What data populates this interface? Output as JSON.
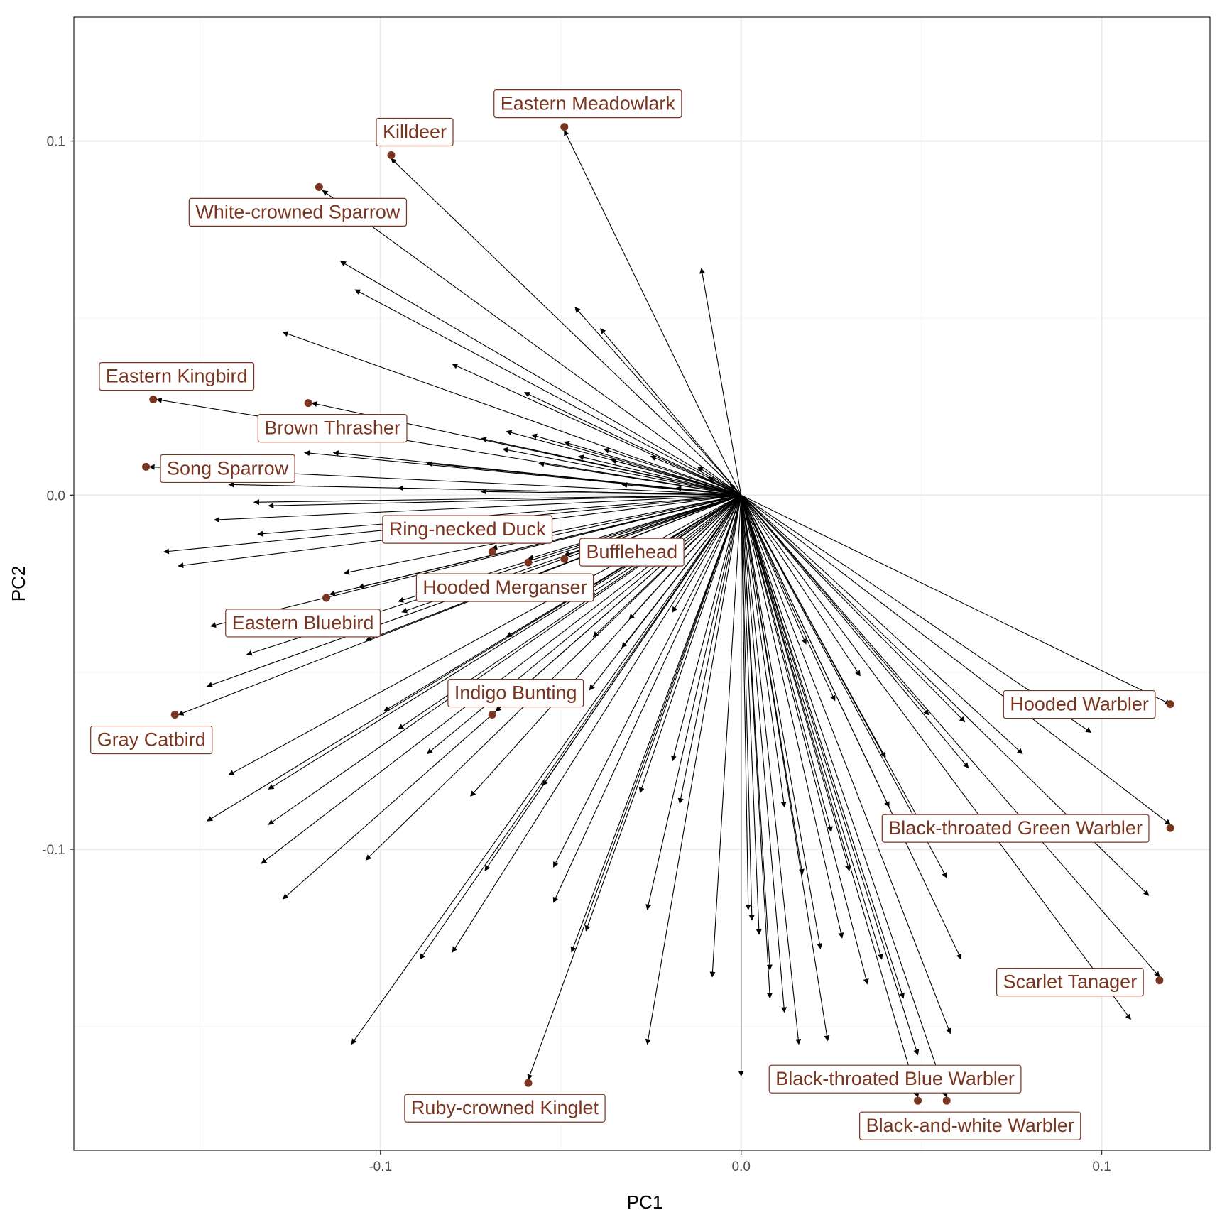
{
  "colors": {
    "background": "#ffffff",
    "grid_major": "#ebebeb",
    "grid_minor": "#f5f5f5",
    "panel_border": "#333333",
    "vector": "#000000",
    "point": "#7a3520",
    "label_text": "#7a3520",
    "label_border": "#7a3520",
    "tick_text": "#4d4d4d"
  },
  "chart_data": {
    "type": "scatter",
    "title": "",
    "xlabel": "PC1",
    "ylabel": "PC2",
    "xlim": [
      -0.185,
      0.13
    ],
    "ylim": [
      -0.185,
      0.135
    ],
    "xticks": [
      -0.1,
      0.0,
      0.1
    ],
    "yticks": [
      -0.1,
      0.0,
      0.1
    ],
    "xtick_labels": [
      "-0.1",
      "0.0",
      "0.1"
    ],
    "ytick_labels": [
      "-0.1",
      "0.0",
      "0.1"
    ],
    "grid": true,
    "legend": "none",
    "origin": [
      0,
      0
    ],
    "points": [
      {
        "name": "Eastern Meadowlark",
        "x": -0.049,
        "y": 0.104
      },
      {
        "name": "Killdeer",
        "x": -0.097,
        "y": 0.096
      },
      {
        "name": "White-crowned Sparrow",
        "x": -0.117,
        "y": 0.087
      },
      {
        "name": "Eastern Kingbird",
        "x": -0.163,
        "y": 0.027
      },
      {
        "name": "Brown Thrasher",
        "x": -0.12,
        "y": 0.026
      },
      {
        "name": "Song Sparrow",
        "x": -0.165,
        "y": 0.008
      },
      {
        "name": "Ring-necked Duck",
        "x": -0.069,
        "y": -0.016
      },
      {
        "name": "Bufflehead",
        "x": -0.049,
        "y": -0.018
      },
      {
        "name": "Hooded Merganser",
        "x": -0.059,
        "y": -0.019
      },
      {
        "name": "Eastern Bluebird",
        "x": -0.115,
        "y": -0.029
      },
      {
        "name": "Indigo Bunting",
        "x": -0.069,
        "y": -0.062
      },
      {
        "name": "Gray Catbird",
        "x": -0.157,
        "y": -0.062
      },
      {
        "name": "Ruby-crowned Kinglet",
        "x": -0.059,
        "y": -0.166
      },
      {
        "name": "Hooded Warbler",
        "x": 0.119,
        "y": -0.059
      },
      {
        "name": "Black-throated Green Warbler",
        "x": 0.119,
        "y": -0.094
      },
      {
        "name": "Scarlet Tanager",
        "x": 0.116,
        "y": -0.137
      },
      {
        "name": "Black-throated Blue Warbler",
        "x": 0.049,
        "y": -0.171
      },
      {
        "name": "Black-and-white Warbler",
        "x": 0.057,
        "y": -0.171
      }
    ],
    "vectors": [
      [
        -0.049,
        0.103
      ],
      [
        -0.097,
        0.095
      ],
      [
        -0.116,
        0.086
      ],
      [
        -0.162,
        0.027
      ],
      [
        -0.119,
        0.026
      ],
      [
        -0.164,
        0.008
      ],
      [
        -0.069,
        -0.015
      ],
      [
        -0.049,
        -0.017
      ],
      [
        -0.059,
        -0.018
      ],
      [
        -0.114,
        -0.028
      ],
      [
        -0.068,
        -0.061
      ],
      [
        -0.156,
        -0.062
      ],
      [
        -0.059,
        -0.165
      ],
      [
        0.119,
        -0.059
      ],
      [
        0.119,
        -0.093
      ],
      [
        0.116,
        -0.136
      ],
      [
        0.049,
        -0.17
      ],
      [
        0.057,
        -0.17
      ],
      [
        -0.011,
        0.064
      ],
      [
        -0.111,
        0.066
      ],
      [
        -0.107,
        0.058
      ],
      [
        -0.046,
        0.053
      ],
      [
        -0.039,
        0.047
      ],
      [
        -0.127,
        0.046
      ],
      [
        -0.08,
        0.037
      ],
      [
        -0.06,
        0.029
      ],
      [
        -0.065,
        0.018
      ],
      [
        -0.058,
        0.017
      ],
      [
        -0.049,
        0.015
      ],
      [
        -0.038,
        0.013
      ],
      [
        -0.072,
        0.016
      ],
      [
        -0.066,
        0.013
      ],
      [
        -0.045,
        0.011
      ],
      [
        -0.036,
        0.01
      ],
      [
        -0.121,
        0.012
      ],
      [
        -0.113,
        0.012
      ],
      [
        -0.087,
        0.009
      ],
      [
        -0.056,
        0.009
      ],
      [
        -0.025,
        0.011
      ],
      [
        -0.009,
        0.005
      ],
      [
        -0.142,
        0.003
      ],
      [
        -0.095,
        0.002
      ],
      [
        -0.072,
        0.001
      ],
      [
        -0.033,
        0.003
      ],
      [
        -0.018,
        0.002
      ],
      [
        -0.135,
        -0.002
      ],
      [
        -0.131,
        -0.003
      ],
      [
        -0.146,
        -0.007
      ],
      [
        -0.134,
        -0.011
      ],
      [
        -0.16,
        -0.016
      ],
      [
        -0.156,
        -0.02
      ],
      [
        -0.11,
        -0.022
      ],
      [
        -0.106,
        -0.026
      ],
      [
        -0.095,
        -0.03
      ],
      [
        -0.147,
        -0.037
      ],
      [
        -0.137,
        -0.045
      ],
      [
        -0.104,
        -0.041
      ],
      [
        -0.094,
        -0.033
      ],
      [
        -0.042,
        -0.028
      ],
      [
        -0.031,
        -0.035
      ],
      [
        -0.148,
        -0.054
      ],
      [
        -0.099,
        -0.061
      ],
      [
        -0.065,
        -0.04
      ],
      [
        -0.041,
        -0.04
      ],
      [
        -0.033,
        -0.043
      ],
      [
        -0.019,
        -0.033
      ],
      [
        -0.142,
        -0.079
      ],
      [
        -0.131,
        -0.083
      ],
      [
        -0.148,
        -0.092
      ],
      [
        -0.095,
        -0.066
      ],
      [
        -0.087,
        -0.073
      ],
      [
        -0.042,
        -0.055
      ],
      [
        -0.131,
        -0.093
      ],
      [
        -0.133,
        -0.104
      ],
      [
        -0.127,
        -0.114
      ],
      [
        -0.104,
        -0.103
      ],
      [
        -0.075,
        -0.085
      ],
      [
        -0.055,
        -0.082
      ],
      [
        -0.071,
        -0.106
      ],
      [
        -0.052,
        -0.115
      ],
      [
        -0.089,
        -0.131
      ],
      [
        -0.08,
        -0.129
      ],
      [
        -0.108,
        -0.155
      ],
      [
        -0.043,
        -0.123
      ],
      [
        -0.047,
        -0.129
      ],
      [
        -0.052,
        -0.105
      ],
      [
        -0.026,
        -0.117
      ],
      [
        -0.026,
        -0.155
      ],
      [
        -0.019,
        -0.075
      ],
      [
        -0.017,
        -0.087
      ],
      [
        -0.008,
        -0.136
      ],
      [
        0.0,
        -0.164
      ],
      [
        0.003,
        -0.12
      ],
      [
        0.005,
        -0.124
      ],
      [
        0.008,
        -0.142
      ],
      [
        0.012,
        -0.088
      ],
      [
        0.012,
        -0.146
      ],
      [
        0.016,
        -0.155
      ],
      [
        0.017,
        -0.107
      ],
      [
        0.018,
        -0.042
      ],
      [
        0.022,
        -0.128
      ],
      [
        0.024,
        -0.154
      ],
      [
        0.025,
        -0.095
      ],
      [
        0.026,
        -0.058
      ],
      [
        0.028,
        -0.125
      ],
      [
        0.03,
        -0.106
      ],
      [
        0.033,
        -0.051
      ],
      [
        0.035,
        -0.138
      ],
      [
        0.039,
        -0.131
      ],
      [
        0.04,
        -0.074
      ],
      [
        0.041,
        -0.088
      ],
      [
        0.045,
        -0.142
      ],
      [
        0.049,
        -0.158
      ],
      [
        0.05,
        -0.093
      ],
      [
        0.052,
        -0.062
      ],
      [
        0.058,
        -0.152
      ],
      [
        0.057,
        -0.108
      ],
      [
        0.061,
        -0.131
      ],
      [
        0.062,
        -0.064
      ],
      [
        0.063,
        -0.077
      ],
      [
        0.078,
        -0.073
      ],
      [
        0.097,
        -0.067
      ],
      [
        0.108,
        -0.148
      ],
      [
        0.113,
        -0.113
      ],
      [
        -0.003,
        0.003
      ],
      [
        -0.012,
        0.008
      ],
      [
        0.002,
        -0.117
      ],
      [
        0.008,
        -0.134
      ],
      [
        -0.028,
        -0.084
      ]
    ]
  }
}
